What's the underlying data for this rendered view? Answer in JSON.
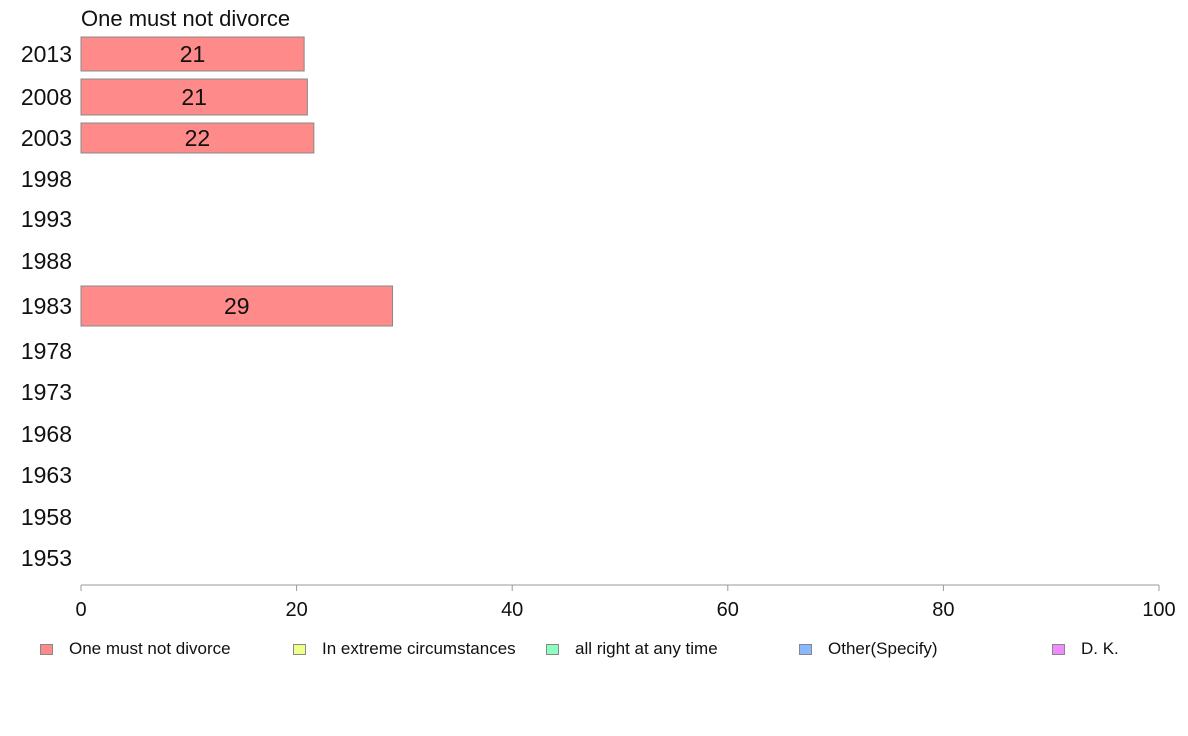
{
  "chart_data": {
    "type": "bar",
    "orientation": "horizontal",
    "title": "One must not divorce",
    "categories": [
      "2013",
      "2008",
      "2003",
      "1998",
      "1993",
      "1988",
      "1983",
      "1978",
      "1973",
      "1968",
      "1963",
      "1958",
      "1953"
    ],
    "series": [
      {
        "name": "One must not divorce",
        "color": "#ff8a8a",
        "values": [
          20.7,
          21.0,
          21.6,
          null,
          null,
          null,
          28.9,
          null,
          null,
          null,
          null,
          null,
          null
        ],
        "labels": [
          "21",
          "21",
          "22",
          "",
          "",
          "",
          "29",
          "",
          "",
          "",
          "",
          "",
          ""
        ]
      }
    ],
    "xlim": [
      0,
      100
    ],
    "xticks": [
      "0",
      "20",
      "40",
      "60",
      "80",
      "100"
    ],
    "grid": false,
    "legend_position": "bottom"
  },
  "legend": {
    "items": [
      {
        "label": "One must not divorce",
        "color": "#ff8a8a"
      },
      {
        "label": "In extreme circumstances",
        "color": "#f0ff8a"
      },
      {
        "label": "all right at any time",
        "color": "#8affc0"
      },
      {
        "label": "Other(Specify)",
        "color": "#8ab8ff"
      },
      {
        "label": "D. K.",
        "color": "#f08aff"
      }
    ]
  }
}
